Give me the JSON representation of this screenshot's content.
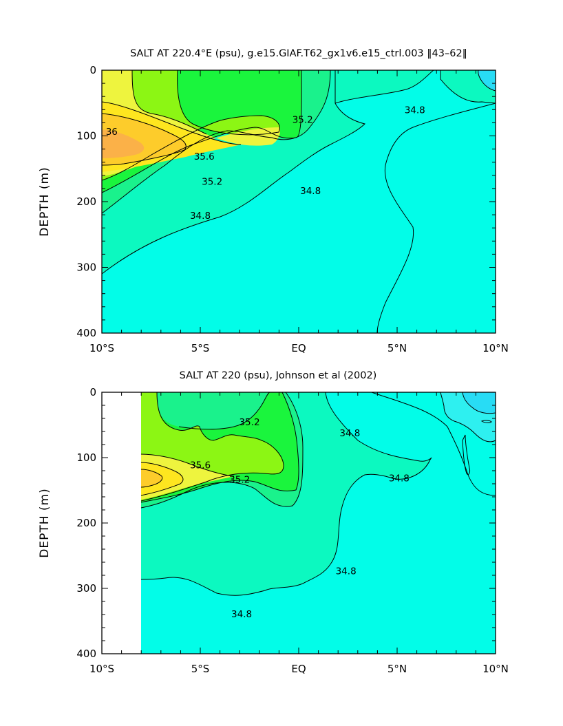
{
  "colors": {
    "s_34_4": "#2ef0f0",
    "s_34_6": "#02fde8",
    "s_34_8": "#0cf9c0",
    "s_35_0": "#1af28c",
    "s_35_2": "#1af53d",
    "s_35_4": "#8cf614",
    "s_35_6": "#eef43e",
    "s_35_8": "#fee61f",
    "s_36_0": "#fdcc2b",
    "s_36_2": "#fbb148",
    "top_band": "#28dcf5"
  },
  "chart_data": [
    {
      "type": "contour",
      "title": "SALT AT 220.4°E (psu), g.e15.GIAF.T62_gx1v6.e15_ctrl.003 ‖43–62‖",
      "ylabel": "DEPTH (m)",
      "xlim": [
        -10,
        10
      ],
      "ylim": [
        400,
        0
      ],
      "x_ticks": [
        -10,
        -5,
        0,
        5,
        10
      ],
      "x_tick_labels": [
        "10°S",
        "5°S",
        "EQ",
        "5°N",
        "10°N"
      ],
      "y_ticks": [
        0,
        100,
        200,
        300,
        400
      ],
      "y_tick_labels": [
        "0",
        "100",
        "200",
        "300",
        "400"
      ],
      "contour_interval": 0.2,
      "contour_labels": [
        {
          "text": "36",
          "x": -9.5,
          "y": 93
        },
        {
          "text": "35.6",
          "x": -4.8,
          "y": 131
        },
        {
          "text": "35.2",
          "x": -4.4,
          "y": 169
        },
        {
          "text": "34.8",
          "x": -5.0,
          "y": 221
        },
        {
          "text": "35.2",
          "x": 0.2,
          "y": 75
        },
        {
          "text": "34.8",
          "x": 0.6,
          "y": 183
        },
        {
          "text": "34.8",
          "x": 5.9,
          "y": 60
        }
      ],
      "regions": [
        {
          "level": 34.6,
          "color_key": "s_34_6"
        },
        {
          "level": 34.8,
          "color_key": "s_34_8"
        },
        {
          "level": 35.0,
          "color_key": "s_35_0"
        },
        {
          "level": 35.2,
          "color_key": "s_35_2"
        },
        {
          "level": 35.4,
          "color_key": "s_35_4"
        },
        {
          "level": 35.6,
          "color_key": "s_35_6"
        },
        {
          "level": 35.8,
          "color_key": "s_35_8"
        },
        {
          "level": 36.0,
          "color_key": "s_36_0"
        },
        {
          "level": 36.2,
          "color_key": "s_36_2"
        }
      ]
    },
    {
      "type": "contour",
      "title": "SALT AT 220 (psu), Johnson et al (2002)",
      "ylabel": "DEPTH (m)",
      "xlim": [
        -10,
        10
      ],
      "ylim": [
        400,
        0
      ],
      "data_start_x": -8,
      "x_ticks": [
        -10,
        -5,
        0,
        5,
        10
      ],
      "x_tick_labels": [
        "10°S",
        "5°S",
        "EQ",
        "5°N",
        "10°N"
      ],
      "y_ticks": [
        0,
        100,
        200,
        300,
        400
      ],
      "y_tick_labels": [
        "0",
        "100",
        "200",
        "300",
        "400"
      ],
      "contour_interval": 0.2,
      "contour_labels": [
        {
          "text": "35.2",
          "x": -2.5,
          "y": 45
        },
        {
          "text": "35.6",
          "x": -5.0,
          "y": 111
        },
        {
          "text": "35.2",
          "x": -3.0,
          "y": 133
        },
        {
          "text": "34.8",
          "x": 2.6,
          "y": 62
        },
        {
          "text": "34.8",
          "x": 5.1,
          "y": 131
        },
        {
          "text": "34.8",
          "x": 2.4,
          "y": 273
        },
        {
          "text": "34.8",
          "x": -2.9,
          "y": 339
        }
      ],
      "regions": [
        {
          "level": 34.4,
          "color_key": "s_34_4"
        },
        {
          "level": 34.6,
          "color_key": "s_34_6"
        },
        {
          "level": 34.8,
          "color_key": "s_34_8"
        },
        {
          "level": 35.0,
          "color_key": "s_35_0"
        },
        {
          "level": 35.2,
          "color_key": "s_35_2"
        },
        {
          "level": 35.4,
          "color_key": "s_35_4"
        },
        {
          "level": 35.6,
          "color_key": "s_35_6"
        },
        {
          "level": 35.8,
          "color_key": "s_35_8"
        },
        {
          "level": 36.0,
          "color_key": "s_36_0"
        }
      ]
    }
  ]
}
